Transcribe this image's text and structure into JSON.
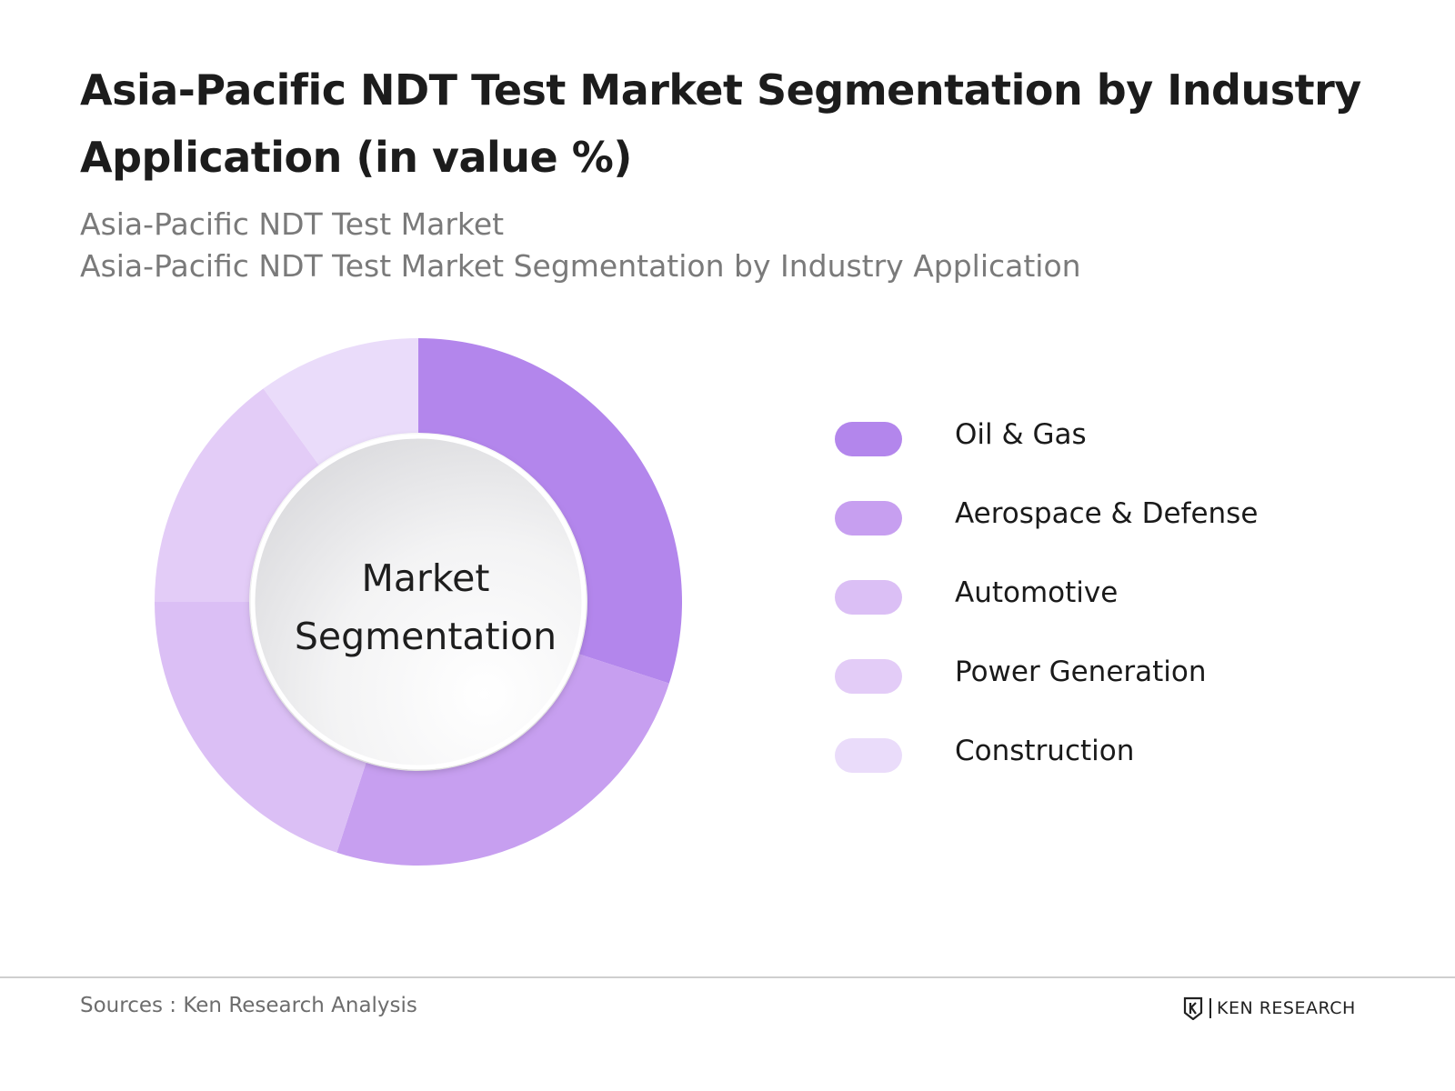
{
  "title": "Asia-Pacific NDT Test Market Segmentation by Industry Application (in value %)",
  "subtitle_1": "Asia-Pacific NDT Test Market",
  "subtitle_2": "Asia-Pacific NDT Test Market Segmentation by Industry Application",
  "footer": {
    "source": "Sources : Ken Research Analysis",
    "brand": "KEN RESEARCH"
  },
  "chart_data": {
    "type": "pie",
    "subtype": "donut",
    "center_label": [
      "Market",
      "Segmentation"
    ],
    "legend_position": "right",
    "categories": [
      "Oil & Gas",
      "Aerospace & Defense",
      "Automotive",
      "Power Generation",
      "Construction"
    ],
    "values": [
      30,
      25,
      20,
      15,
      10
    ],
    "colors": [
      "#b386ec",
      "#c79ff0",
      "#dbbff5",
      "#e3ccf7",
      "#eadcfa"
    ]
  }
}
